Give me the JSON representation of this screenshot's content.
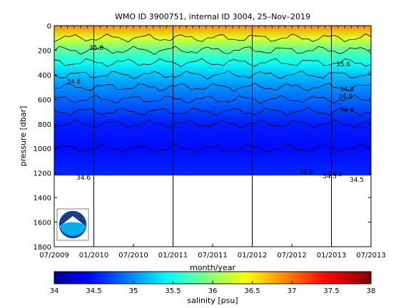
{
  "chart_data": {
    "type": "heatmap",
    "title": "WMO ID 3900751, internal ID 3004, 25–Nov–2019",
    "xlabel": "month/year",
    "ylabel": "pressure [dbar]",
    "x_ticks": [
      "07/2009",
      "01/2010",
      "07/2010",
      "01/2011",
      "07/2011",
      "01/2012",
      "07/2012",
      "01/2013",
      "07/2013"
    ],
    "x_range": [
      "2009-07",
      "2013-07"
    ],
    "year_boundaries": [
      "01/2010",
      "01/2011",
      "01/2012",
      "01/2013"
    ],
    "y_ticks": [
      0,
      200,
      400,
      600,
      800,
      1000,
      1200,
      1400,
      1600,
      1800
    ],
    "ylim": [
      0,
      1800
    ],
    "y_reversed": true,
    "profile_bottom_dbar": 1220,
    "colorbar": {
      "label": "salinity [psu]",
      "ticks": [
        34,
        34.5,
        35,
        35.5,
        36,
        36.5,
        37,
        37.5,
        38
      ],
      "range": [
        34,
        38
      ],
      "colormap": "jet"
    },
    "salinity_depth_profile": [
      {
        "pressure": 0,
        "salinity": 36.9
      },
      {
        "pressure": 100,
        "salinity": 36.3
      },
      {
        "pressure": 200,
        "salinity": 35.8
      },
      {
        "pressure": 300,
        "salinity": 35.5
      },
      {
        "pressure": 400,
        "salinity": 35.2
      },
      {
        "pressure": 500,
        "salinity": 35.0
      },
      {
        "pressure": 600,
        "salinity": 34.85
      },
      {
        "pressure": 700,
        "salinity": 34.7
      },
      {
        "pressure": 800,
        "salinity": 34.55
      },
      {
        "pressure": 1000,
        "salinity": 34.48
      },
      {
        "pressure": 1200,
        "salinity": 34.58
      }
    ],
    "contour_labels": [
      "35.8",
      "35.6",
      "34.8",
      "34.8",
      "34.8",
      "34.8",
      "34.6",
      "34.6",
      "34.5",
      "34.5",
      "34.5"
    ],
    "grid": false,
    "legend": "none"
  },
  "logo": {
    "text": "NOAA",
    "colors": {
      "outer": "#1b3b8f",
      "wave": "#00aeef",
      "white": "#ffffff"
    }
  }
}
